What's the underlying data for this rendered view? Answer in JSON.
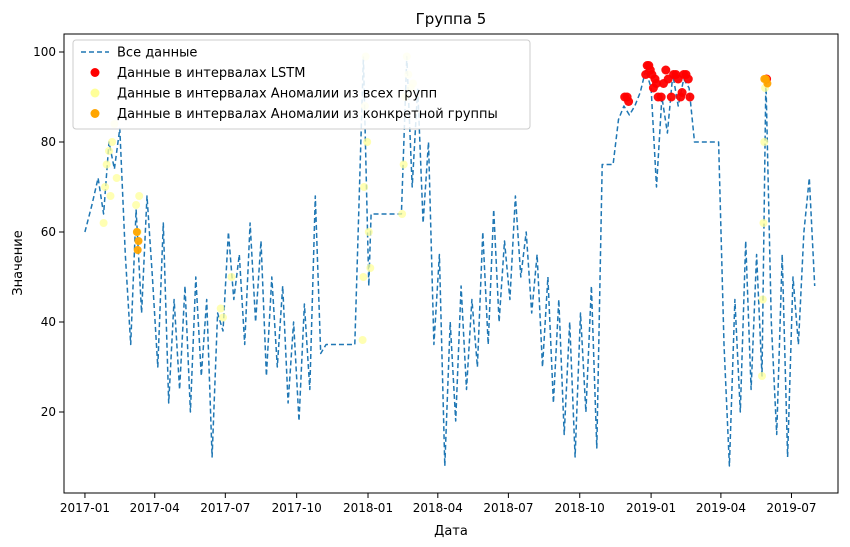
{
  "chart_data": {
    "type": "line",
    "title": "Группа 5",
    "xlabel": "Дата",
    "ylabel": "Значение",
    "xlim": [
      "2016-12-05",
      "2019-08-30"
    ],
    "ylim": [
      2,
      104
    ],
    "x_ticks": [
      "2017-01",
      "2017-04",
      "2017-07",
      "2017-10",
      "2018-01",
      "2018-04",
      "2018-07",
      "2018-10",
      "2019-01",
      "2019-04",
      "2019-07"
    ],
    "y_ticks": [
      20,
      40,
      60,
      80,
      100
    ],
    "grid": false,
    "legend": {
      "placement": "top-left",
      "entries": [
        {
          "label": "Все данные",
          "marker": "dashed-line",
          "color": "#1f77b4"
        },
        {
          "label": "Данные в интервалах LSTM",
          "marker": "dot",
          "color": "#ff0000"
        },
        {
          "label": "Данные в интервалах Аномалии из всех групп",
          "marker": "dot",
          "color": "#ffff99"
        },
        {
          "label": "Данные в интервалах Аномалии из конкретной группы",
          "marker": "dot",
          "color": "#ffa500"
        }
      ]
    },
    "series": [
      {
        "name": "Все данные",
        "style": "dashed",
        "color": "#1f77b4",
        "points": [
          [
            "2017-01-01",
            60
          ],
          [
            "2017-01-10",
            66
          ],
          [
            "2017-01-18",
            72
          ],
          [
            "2017-01-25",
            64
          ],
          [
            "2017-02-01",
            80
          ],
          [
            "2017-02-08",
            74
          ],
          [
            "2017-02-15",
            83
          ],
          [
            "2017-02-22",
            55
          ],
          [
            "2017-03-01",
            35
          ],
          [
            "2017-03-08",
            65
          ],
          [
            "2017-03-15",
            42
          ],
          [
            "2017-03-22",
            68
          ],
          [
            "2017-03-29",
            50
          ],
          [
            "2017-04-05",
            30
          ],
          [
            "2017-04-12",
            62
          ],
          [
            "2017-04-19",
            22
          ],
          [
            "2017-04-26",
            45
          ],
          [
            "2017-05-03",
            25
          ],
          [
            "2017-05-10",
            48
          ],
          [
            "2017-05-17",
            20
          ],
          [
            "2017-05-24",
            50
          ],
          [
            "2017-05-31",
            28
          ],
          [
            "2017-06-07",
            45
          ],
          [
            "2017-06-14",
            10
          ],
          [
            "2017-06-21",
            42
          ],
          [
            "2017-06-28",
            38
          ],
          [
            "2017-07-05",
            60
          ],
          [
            "2017-07-12",
            45
          ],
          [
            "2017-07-19",
            55
          ],
          [
            "2017-07-26",
            35
          ],
          [
            "2017-08-02",
            62
          ],
          [
            "2017-08-09",
            40
          ],
          [
            "2017-08-16",
            58
          ],
          [
            "2017-08-23",
            28
          ],
          [
            "2017-08-30",
            50
          ],
          [
            "2017-09-06",
            30
          ],
          [
            "2017-09-13",
            48
          ],
          [
            "2017-09-20",
            22
          ],
          [
            "2017-09-27",
            40
          ],
          [
            "2017-10-04",
            18
          ],
          [
            "2017-10-11",
            44
          ],
          [
            "2017-10-18",
            25
          ],
          [
            "2017-10-25",
            68
          ],
          [
            "2017-11-01",
            33
          ],
          [
            "2017-11-08",
            35
          ],
          [
            "2017-12-15",
            35
          ],
          [
            "2017-12-26",
            99
          ],
          [
            "2018-01-02",
            48
          ],
          [
            "2018-01-05",
            64
          ],
          [
            "2018-02-13",
            64
          ],
          [
            "2018-02-20",
            99
          ],
          [
            "2018-02-27",
            70
          ],
          [
            "2018-03-06",
            92
          ],
          [
            "2018-03-13",
            62
          ],
          [
            "2018-03-20",
            80
          ],
          [
            "2018-03-27",
            35
          ],
          [
            "2018-04-03",
            55
          ],
          [
            "2018-04-10",
            8
          ],
          [
            "2018-04-17",
            40
          ],
          [
            "2018-04-24",
            18
          ],
          [
            "2018-05-01",
            48
          ],
          [
            "2018-05-08",
            25
          ],
          [
            "2018-05-15",
            45
          ],
          [
            "2018-05-22",
            30
          ],
          [
            "2018-05-29",
            60
          ],
          [
            "2018-06-05",
            35
          ],
          [
            "2018-06-12",
            65
          ],
          [
            "2018-06-19",
            40
          ],
          [
            "2018-06-26",
            58
          ],
          [
            "2018-07-03",
            45
          ],
          [
            "2018-07-10",
            68
          ],
          [
            "2018-07-17",
            50
          ],
          [
            "2018-07-24",
            60
          ],
          [
            "2018-07-31",
            42
          ],
          [
            "2018-08-07",
            55
          ],
          [
            "2018-08-14",
            30
          ],
          [
            "2018-08-21",
            50
          ],
          [
            "2018-08-28",
            22
          ],
          [
            "2018-09-04",
            45
          ],
          [
            "2018-09-11",
            15
          ],
          [
            "2018-09-18",
            40
          ],
          [
            "2018-09-25",
            10
          ],
          [
            "2018-10-02",
            42
          ],
          [
            "2018-10-09",
            20
          ],
          [
            "2018-10-16",
            48
          ],
          [
            "2018-10-23",
            12
          ],
          [
            "2018-10-30",
            75
          ],
          [
            "2018-11-13",
            75
          ],
          [
            "2018-11-20",
            85
          ],
          [
            "2018-11-27",
            88
          ],
          [
            "2018-12-04",
            86
          ],
          [
            "2018-12-11",
            88
          ],
          [
            "2018-12-18",
            91
          ],
          [
            "2018-12-25",
            96
          ],
          [
            "2019-01-01",
            92
          ],
          [
            "2019-01-08",
            70
          ],
          [
            "2019-01-15",
            90
          ],
          [
            "2019-01-22",
            82
          ],
          [
            "2019-01-29",
            95
          ],
          [
            "2019-02-05",
            88
          ],
          [
            "2019-02-12",
            94
          ],
          [
            "2019-02-19",
            92
          ],
          [
            "2019-02-26",
            80
          ],
          [
            "2019-03-15",
            80
          ],
          [
            "2019-03-29",
            80
          ],
          [
            "2019-04-05",
            35
          ],
          [
            "2019-04-12",
            8
          ],
          [
            "2019-04-19",
            45
          ],
          [
            "2019-04-26",
            20
          ],
          [
            "2019-05-03",
            58
          ],
          [
            "2019-05-10",
            25
          ],
          [
            "2019-05-17",
            55
          ],
          [
            "2019-05-24",
            28
          ],
          [
            "2019-05-29",
            94
          ],
          [
            "2019-06-05",
            40
          ],
          [
            "2019-06-12",
            15
          ],
          [
            "2019-06-19",
            55
          ],
          [
            "2019-06-26",
            10
          ],
          [
            "2019-07-03",
            50
          ],
          [
            "2019-07-10",
            35
          ],
          [
            "2019-07-17",
            60
          ],
          [
            "2019-07-24",
            72
          ],
          [
            "2019-07-31",
            48
          ]
        ]
      },
      {
        "name": "Данные в интервалах LSTM",
        "color": "#ff0000",
        "points": [
          [
            "2018-11-28",
            90
          ],
          [
            "2018-12-01",
            90
          ],
          [
            "2018-12-03",
            89
          ],
          [
            "2018-12-25",
            95
          ],
          [
            "2018-12-27",
            97
          ],
          [
            "2018-12-29",
            97
          ],
          [
            "2018-12-31",
            96
          ],
          [
            "2019-01-02",
            95
          ],
          [
            "2019-01-04",
            92
          ],
          [
            "2019-01-06",
            94
          ],
          [
            "2019-01-08",
            93
          ],
          [
            "2019-01-10",
            90
          ],
          [
            "2019-01-14",
            90
          ],
          [
            "2019-01-17",
            93
          ],
          [
            "2019-01-20",
            96
          ],
          [
            "2019-01-23",
            94
          ],
          [
            "2019-01-27",
            90
          ],
          [
            "2019-01-30",
            95
          ],
          [
            "2019-02-02",
            95
          ],
          [
            "2019-02-05",
            94
          ],
          [
            "2019-02-08",
            90
          ],
          [
            "2019-02-10",
            91
          ],
          [
            "2019-02-12",
            95
          ],
          [
            "2019-02-15",
            95
          ],
          [
            "2019-02-18",
            94
          ],
          [
            "2019-02-20",
            90
          ],
          [
            "2019-05-30",
            94
          ]
        ]
      },
      {
        "name": "Данные в интервалах Аномалии из всех групп",
        "color": "#ffff99",
        "points": [
          [
            "2017-01-25",
            62
          ],
          [
            "2017-01-27",
            70
          ],
          [
            "2017-01-29",
            75
          ],
          [
            "2017-02-01",
            78
          ],
          [
            "2017-02-03",
            68
          ],
          [
            "2017-02-05",
            80
          ],
          [
            "2017-02-08",
            84
          ],
          [
            "2017-02-11",
            72
          ],
          [
            "2017-03-08",
            66
          ],
          [
            "2017-03-10",
            60
          ],
          [
            "2017-03-12",
            68
          ],
          [
            "2017-06-25",
            43
          ],
          [
            "2017-06-28",
            41
          ],
          [
            "2017-07-09",
            50
          ],
          [
            "2017-12-25",
            36
          ],
          [
            "2017-12-26",
            50
          ],
          [
            "2017-12-27",
            70
          ],
          [
            "2017-12-28",
            88
          ],
          [
            "2017-12-29",
            99
          ],
          [
            "2017-12-31",
            80
          ],
          [
            "2018-01-02",
            60
          ],
          [
            "2018-01-04",
            52
          ],
          [
            "2018-02-14",
            64
          ],
          [
            "2018-02-16",
            75
          ],
          [
            "2018-02-18",
            90
          ],
          [
            "2018-02-20",
            99
          ],
          [
            "2018-02-22",
            95
          ],
          [
            "2018-02-25",
            92
          ],
          [
            "2018-02-28",
            93
          ],
          [
            "2019-05-24",
            28
          ],
          [
            "2019-05-25",
            45
          ],
          [
            "2019-05-26",
            62
          ],
          [
            "2019-05-27",
            80
          ],
          [
            "2019-05-28",
            92
          ]
        ]
      },
      {
        "name": "Данные в интервалах Аномалии из конкретной группы",
        "color": "#ffa500",
        "points": [
          [
            "2017-03-09",
            60
          ],
          [
            "2017-03-10",
            56
          ],
          [
            "2017-03-11",
            58
          ],
          [
            "2019-05-27",
            94
          ],
          [
            "2019-05-29",
            94
          ],
          [
            "2019-05-31",
            93
          ]
        ]
      }
    ]
  }
}
